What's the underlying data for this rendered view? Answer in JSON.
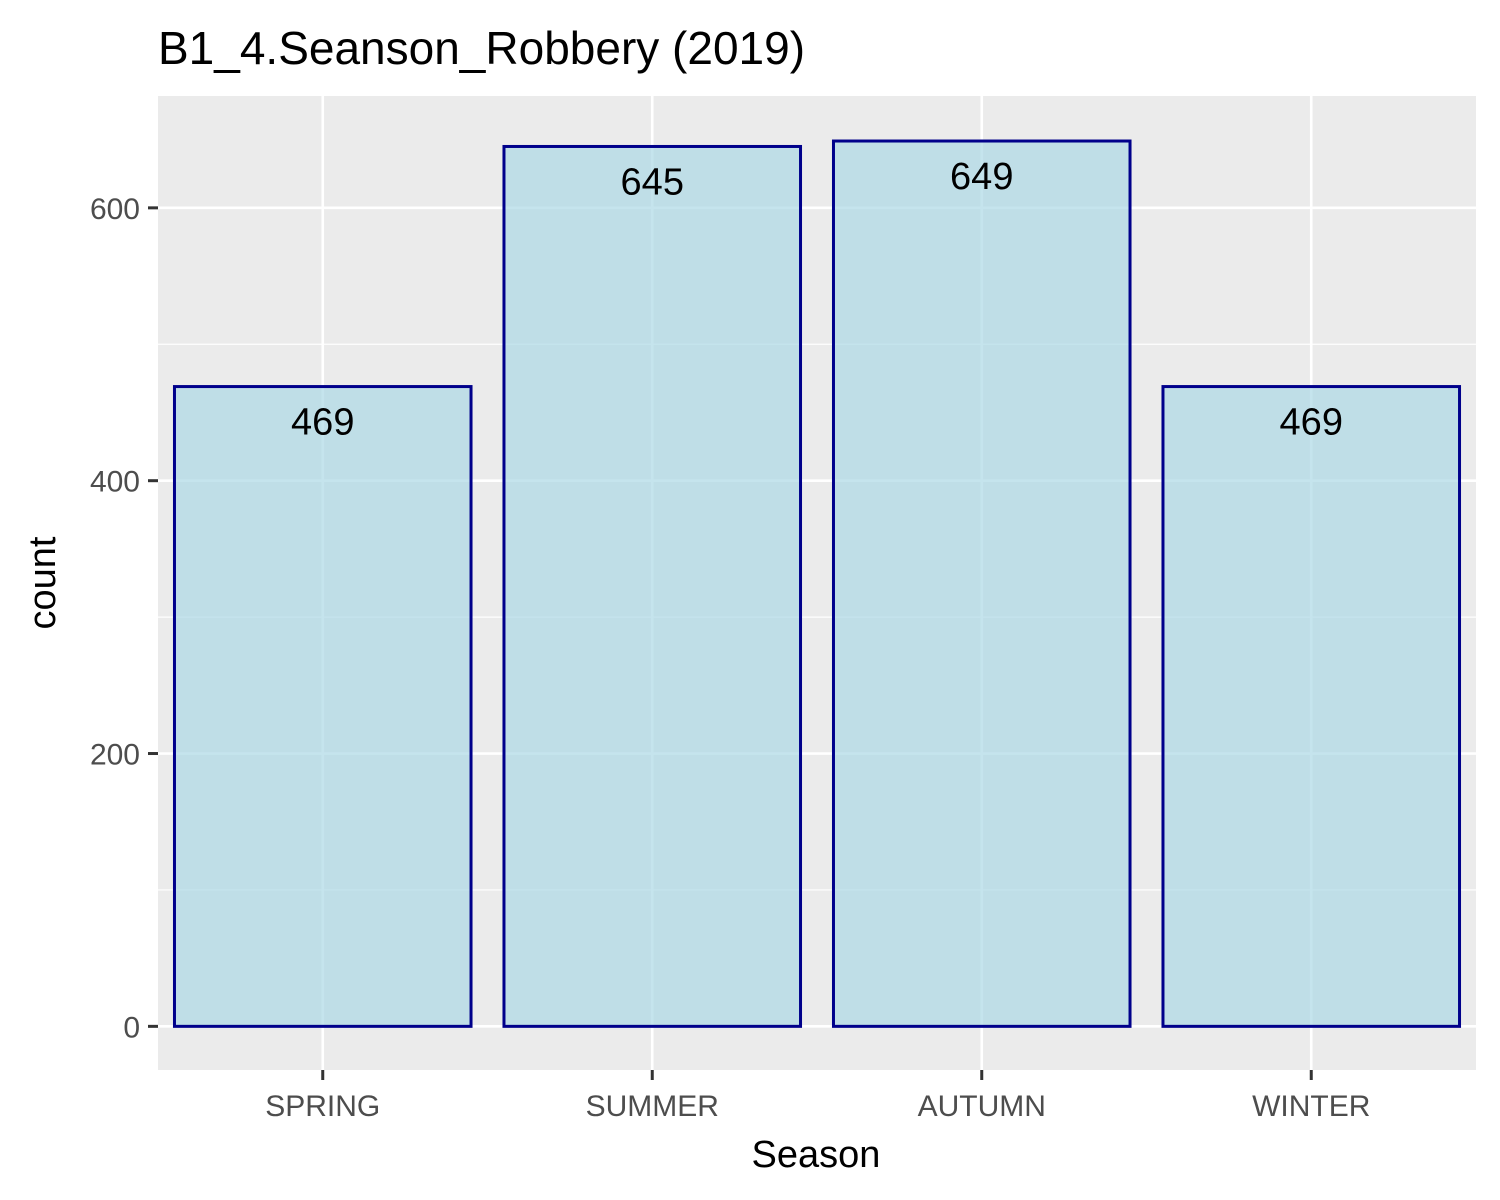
{
  "chart_data": {
    "type": "bar",
    "title": "B1_4.Seanson_Robbery (2019)",
    "xlabel": "Season",
    "ylabel": "count",
    "categories": [
      "SPRING",
      "SUMMER",
      "AUTUMN",
      "WINTER"
    ],
    "values": [
      469,
      645,
      649,
      469
    ],
    "data_labels": [
      "469",
      "645",
      "649",
      "469"
    ],
    "y_ticks": [
      0,
      200,
      400,
      600
    ],
    "y_tick_labels": [
      "0",
      "200",
      "400",
      "600"
    ],
    "ylim": [
      -32,
      682
    ],
    "grid": true,
    "legend": "none",
    "colors": {
      "panel_background": "#ebebeb",
      "grid_line": "#ffffff",
      "bar_fill": "#add8e6",
      "bar_fill_opacity": 0.7,
      "bar_outline": "#00008b",
      "tick_text": "#4d4d4d",
      "tick_mark": "#333333"
    }
  }
}
